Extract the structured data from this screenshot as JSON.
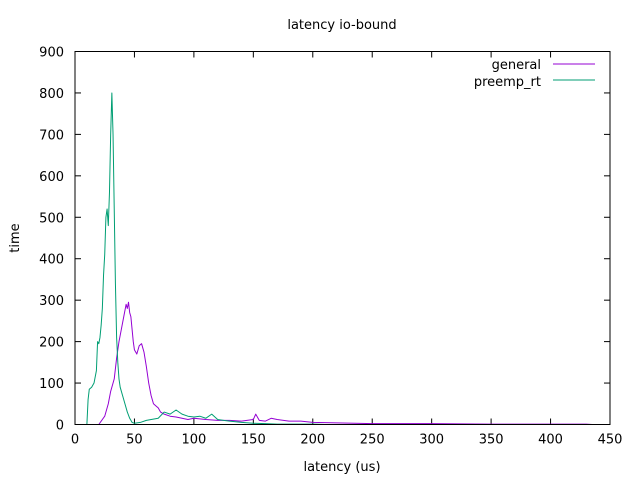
{
  "chart_data": {
    "type": "line",
    "title": "latency io-bound",
    "xlabel": "latency (us)",
    "ylabel": "time",
    "xlim": [
      0,
      450
    ],
    "ylim": [
      0,
      900
    ],
    "xticks": [
      0,
      50,
      100,
      150,
      200,
      250,
      300,
      350,
      400,
      450
    ],
    "yticks": [
      0,
      100,
      200,
      300,
      400,
      500,
      600,
      700,
      800,
      900
    ],
    "grid": false,
    "legend_position": "top-right",
    "series": [
      {
        "name": "general",
        "color": "#9400d3",
        "points": [
          [
            20,
            0
          ],
          [
            25,
            20
          ],
          [
            28,
            50
          ],
          [
            30,
            80
          ],
          [
            33,
            110
          ],
          [
            35,
            160
          ],
          [
            37,
            200
          ],
          [
            39,
            230
          ],
          [
            41,
            260
          ],
          [
            43,
            290
          ],
          [
            44,
            280
          ],
          [
            45,
            295
          ],
          [
            46,
            270
          ],
          [
            47,
            260
          ],
          [
            48,
            230
          ],
          [
            49,
            200
          ],
          [
            50,
            180
          ],
          [
            52,
            170
          ],
          [
            54,
            190
          ],
          [
            56,
            195
          ],
          [
            58,
            175
          ],
          [
            60,
            140
          ],
          [
            62,
            100
          ],
          [
            64,
            70
          ],
          [
            66,
            50
          ],
          [
            68,
            45
          ],
          [
            70,
            40
          ],
          [
            72,
            30
          ],
          [
            75,
            25
          ],
          [
            80,
            20
          ],
          [
            85,
            18
          ],
          [
            90,
            15
          ],
          [
            95,
            12
          ],
          [
            100,
            15
          ],
          [
            110,
            12
          ],
          [
            120,
            10
          ],
          [
            130,
            10
          ],
          [
            140,
            8
          ],
          [
            150,
            12
          ],
          [
            152,
            25
          ],
          [
            155,
            10
          ],
          [
            160,
            8
          ],
          [
            165,
            15
          ],
          [
            170,
            12
          ],
          [
            180,
            8
          ],
          [
            190,
            8
          ],
          [
            200,
            5
          ],
          [
            220,
            4
          ],
          [
            250,
            2
          ],
          [
            300,
            2
          ],
          [
            350,
            1
          ],
          [
            400,
            1
          ],
          [
            410,
            1
          ],
          [
            430,
            1
          ],
          [
            435,
            0
          ]
        ]
      },
      {
        "name": "preemp_rt",
        "color": "#009e73",
        "points": [
          [
            10,
            0
          ],
          [
            11,
            60
          ],
          [
            12,
            85
          ],
          [
            14,
            90
          ],
          [
            16,
            100
          ],
          [
            18,
            130
          ],
          [
            19,
            200
          ],
          [
            20,
            195
          ],
          [
            21,
            210
          ],
          [
            22,
            240
          ],
          [
            23,
            280
          ],
          [
            24,
            360
          ],
          [
            25,
            410
          ],
          [
            26,
            500
          ],
          [
            27,
            520
          ],
          [
            28,
            480
          ],
          [
            29,
            560
          ],
          [
            30,
            700
          ],
          [
            31,
            800
          ],
          [
            32,
            700
          ],
          [
            33,
            520
          ],
          [
            34,
            340
          ],
          [
            35,
            210
          ],
          [
            36,
            150
          ],
          [
            37,
            110
          ],
          [
            38,
            90
          ],
          [
            40,
            70
          ],
          [
            42,
            50
          ],
          [
            44,
            30
          ],
          [
            46,
            15
          ],
          [
            48,
            5
          ],
          [
            50,
            3
          ],
          [
            55,
            5
          ],
          [
            60,
            10
          ],
          [
            70,
            15
          ],
          [
            75,
            30
          ],
          [
            80,
            25
          ],
          [
            85,
            35
          ],
          [
            90,
            25
          ],
          [
            95,
            20
          ],
          [
            100,
            18
          ],
          [
            105,
            20
          ],
          [
            110,
            15
          ],
          [
            115,
            25
          ],
          [
            120,
            12
          ],
          [
            125,
            10
          ],
          [
            130,
            8
          ],
          [
            140,
            5
          ],
          [
            150,
            3
          ],
          [
            160,
            2
          ],
          [
            170,
            1
          ],
          [
            180,
            1
          ],
          [
            200,
            1
          ],
          [
            210,
            0
          ]
        ]
      }
    ]
  }
}
